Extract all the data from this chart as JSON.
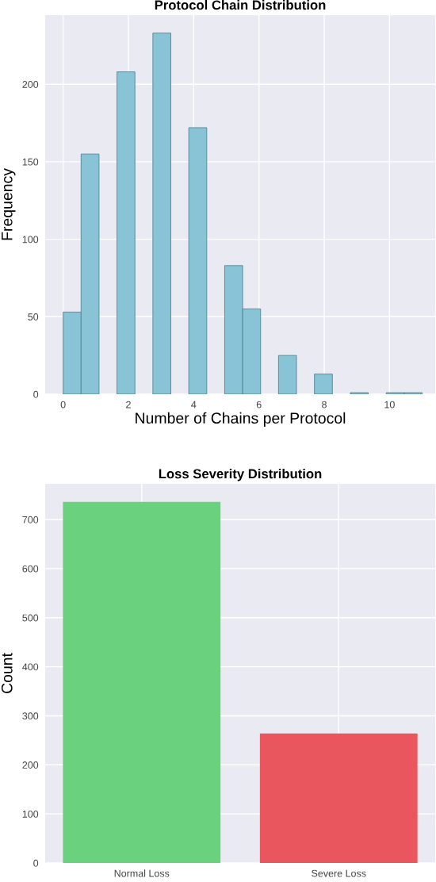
{
  "chart_data": [
    {
      "type": "histogram",
      "title": "Protocol Chain Distribution",
      "xlabel": "Number of Chains per Protocol",
      "ylabel": "Frequency",
      "bins": [
        0,
        0.55,
        1.1,
        1.65,
        2.2,
        2.75,
        3.3,
        3.85,
        4.4,
        4.95,
        5.5,
        6.05,
        6.6,
        7.15,
        7.7,
        8.25,
        8.8,
        9.35,
        9.9,
        10.45,
        11
      ],
      "values": [
        53,
        155,
        0,
        208,
        0,
        233,
        0,
        172,
        0,
        83,
        55,
        0,
        25,
        0,
        13,
        0,
        1,
        0,
        1,
        1
      ],
      "color": "#89c4d6",
      "xlim": [
        -0.55,
        11.4
      ],
      "xticks": [
        0,
        2,
        4,
        6,
        8,
        10
      ],
      "ylim": [
        0,
        244.65
      ],
      "yticks": [
        0,
        50,
        100,
        150,
        200
      ],
      "grid": true
    },
    {
      "type": "bar",
      "title": "Loss Severity Distribution",
      "ylabel": "Count",
      "categories": [
        "Normal Loss",
        "Severe Loss"
      ],
      "values": [
        736,
        264
      ],
      "colors": [
        "#6ad27e",
        "#e9565e"
      ],
      "ylim": [
        0,
        772.8
      ],
      "yticks": [
        0,
        100,
        200,
        300,
        400,
        500,
        600,
        700
      ],
      "grid": true
    }
  ]
}
